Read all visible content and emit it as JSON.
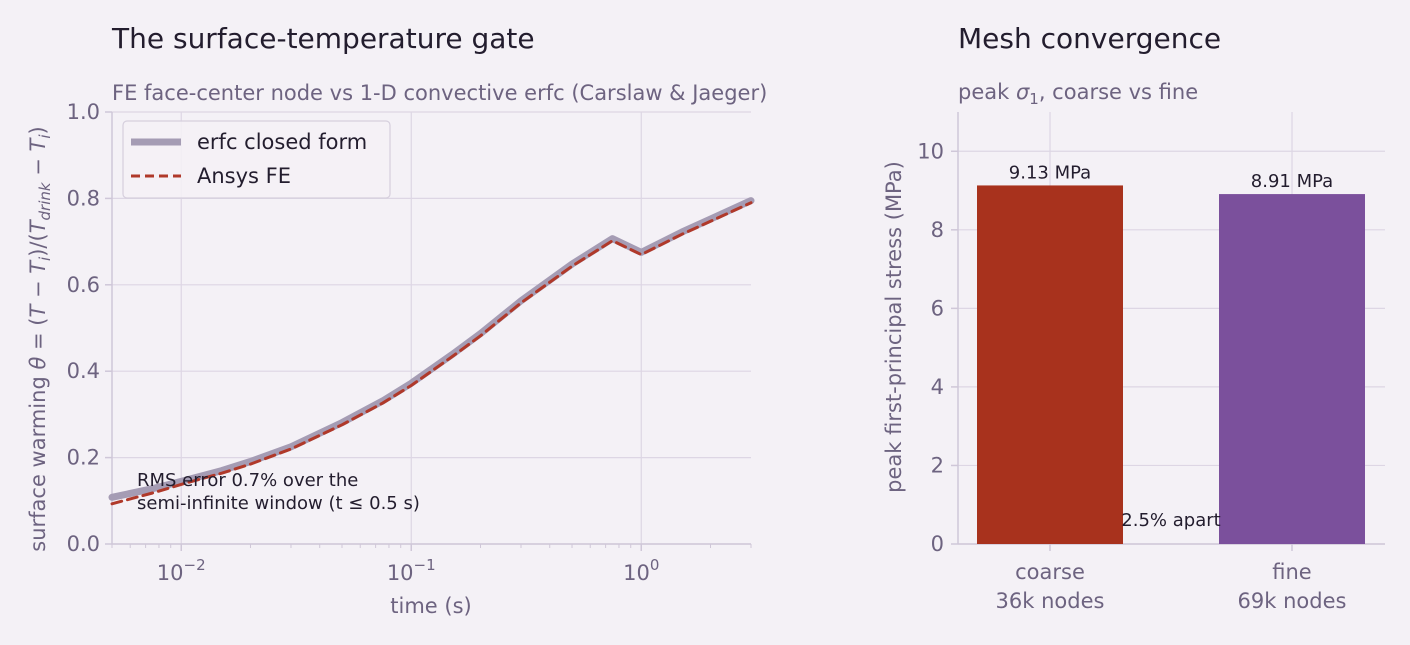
{
  "chart_data": [
    {
      "type": "line",
      "title": "The surface-temperature gate",
      "subtitle": "FE face-center node vs 1-D convective erfc (Carslaw & Jaeger)",
      "xlabel": "time  (s)",
      "ylabel_parts": [
        "surface warming  ",
        "θ",
        " = (",
        "T",
        " − ",
        "T",
        "i",
        ")/(",
        "T",
        "drink",
        " − ",
        "T",
        "i",
        ")"
      ],
      "x_scale": "log",
      "xlim": [
        0.005,
        3.0
      ],
      "ylim": [
        0.0,
        1.0
      ],
      "x_ticks": [
        {
          "value": 0.01,
          "base": "10",
          "exp": "−2"
        },
        {
          "value": 0.1,
          "base": "10",
          "exp": "−1"
        },
        {
          "value": 1.0,
          "base": "10",
          "exp": "0"
        }
      ],
      "y_ticks": [
        {
          "value": 0.0,
          "label": "0.0"
        },
        {
          "value": 0.2,
          "label": "0.2"
        },
        {
          "value": 0.4,
          "label": "0.4"
        },
        {
          "value": 0.6,
          "label": "0.6"
        },
        {
          "value": 0.8,
          "label": "0.8"
        },
        {
          "value": 1.0,
          "label": "1.0"
        }
      ],
      "grid": true,
      "legend_position": "top-left",
      "series": [
        {
          "name": "erfc closed form",
          "style": "solid-thick",
          "color": "#a59cb4",
          "x": [
            0.005,
            0.0075,
            0.01,
            0.015,
            0.02,
            0.03,
            0.05,
            0.075,
            0.1,
            0.15,
            0.2,
            0.3,
            0.5,
            0.75,
            1.0,
            1.5,
            2.0,
            3.0
          ],
          "y": [
            0.108,
            0.128,
            0.145,
            0.17,
            0.191,
            0.225,
            0.281,
            0.331,
            0.372,
            0.438,
            0.487,
            0.563,
            0.648,
            0.707,
            0.675,
            0.722,
            0.752,
            0.795
          ]
        },
        {
          "name": "Ansys FE",
          "style": "dashed",
          "color": "#b0392a",
          "x": [
            0.005,
            0.0075,
            0.01,
            0.015,
            0.02,
            0.03,
            0.05,
            0.075,
            0.1,
            0.15,
            0.2,
            0.3,
            0.5,
            0.75,
            1.0,
            1.5,
            2.0,
            3.0
          ],
          "y": [
            0.093,
            0.118,
            0.138,
            0.164,
            0.185,
            0.22,
            0.276,
            0.326,
            0.367,
            0.433,
            0.482,
            0.558,
            0.643,
            0.702,
            0.67,
            0.717,
            0.747,
            0.79
          ]
        }
      ],
      "annotation": [
        "RMS error 0.7% over the",
        "semi-infinite window (t ≤ 0.5 s)"
      ]
    },
    {
      "type": "bar",
      "title": "Mesh convergence",
      "subtitle_parts": [
        "peak ",
        "σ",
        "1",
        ", coarse vs fine"
      ],
      "ylabel": "peak first-principal stress  (MPa)",
      "ylim": [
        0,
        11
      ],
      "y_ticks": [
        {
          "value": 0,
          "label": "0"
        },
        {
          "value": 2,
          "label": "2"
        },
        {
          "value": 4,
          "label": "4"
        },
        {
          "value": 6,
          "label": "6"
        },
        {
          "value": 8,
          "label": "8"
        },
        {
          "value": 10,
          "label": "10"
        }
      ],
      "grid": true,
      "categories": [
        {
          "lines": [
            "coarse",
            "36k nodes"
          ]
        },
        {
          "lines": [
            "fine",
            "69k nodes"
          ]
        }
      ],
      "values": [
        9.13,
        8.91
      ],
      "value_labels": [
        "9.13 MPa",
        "8.91 MPa"
      ],
      "colors": [
        "#a8321d",
        "#7b509c"
      ],
      "annotation": "2.5% apart"
    }
  ]
}
